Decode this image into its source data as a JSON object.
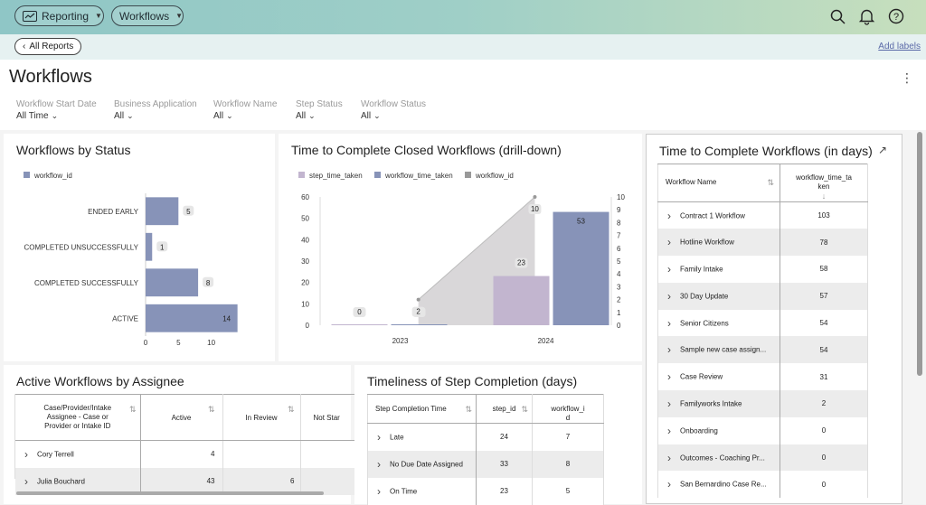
{
  "nav": {
    "reporting_label": "Reporting",
    "workflows_label": "Workflows",
    "back_label": "All Reports",
    "add_labels": "Add labels"
  },
  "page": {
    "title": "Workflows"
  },
  "filters": [
    {
      "label": "Workflow Start Date",
      "value": "All Time"
    },
    {
      "label": "Business Application",
      "value": "All"
    },
    {
      "label": "Workflow Name",
      "value": "All"
    },
    {
      "label": "Step Status",
      "value": "All"
    },
    {
      "label": "Workflow Status",
      "value": "All"
    }
  ],
  "status_chart": {
    "title": "Workflows by Status",
    "legend": "workflow_id"
  },
  "time_chart": {
    "title": "Time to Complete Closed Workflows (drill-down)",
    "legend": [
      "step_time_taken",
      "workflow_time_taken",
      "workflow_id"
    ]
  },
  "chart_data": [
    {
      "type": "bar",
      "orientation": "horizontal",
      "title": "Workflows by Status",
      "categories": [
        "ENDED EARLY",
        "COMPLETED UNSUCCESSFULLY",
        "COMPLETED SUCCESSFULLY",
        "ACTIVE"
      ],
      "series": [
        {
          "name": "workflow_id",
          "values": [
            5,
            1,
            8,
            14
          ]
        }
      ],
      "xticks": [
        0,
        5,
        10
      ],
      "xlim": [
        0,
        14.6
      ],
      "color": "#8793b8"
    },
    {
      "type": "bar",
      "title": "Time to Complete Closed Workflows (drill-down)",
      "categories": [
        "2023",
        "2024"
      ],
      "series": [
        {
          "name": "step_time_taken",
          "values": [
            0,
            23
          ],
          "axis": "left"
        },
        {
          "name": "workflow_time_taken",
          "values": [
            0,
            53
          ],
          "axis": "left"
        },
        {
          "name": "workflow_id",
          "values": [
            2,
            10
          ],
          "axis": "right",
          "type": "area"
        }
      ],
      "ylim_left": [
        0,
        60
      ],
      "yticks_left": [
        0,
        10,
        20,
        30,
        40,
        50,
        60
      ],
      "ylim_right": [
        0,
        10
      ],
      "yticks_right": [
        0,
        1,
        2,
        3,
        4,
        5,
        6,
        7,
        8,
        9,
        10
      ],
      "colors": {
        "step_time_taken": "#c2b5cf",
        "workflow_time_taken": "#8793b8",
        "workflow_id": "#999999"
      }
    }
  ],
  "time_table": {
    "title": "Time to Complete Workflows (in days)",
    "headers": [
      "Workflow Name",
      "workflow_time_ta\nken"
    ],
    "rows": [
      {
        "name": "Contract 1 Workflow",
        "value": "103"
      },
      {
        "name": "Hotline Workflow",
        "value": "78"
      },
      {
        "name": "Family Intake",
        "value": "58"
      },
      {
        "name": "30 Day Update",
        "value": "57"
      },
      {
        "name": "Senior Citizens",
        "value": "54"
      },
      {
        "name": "Sample new case assign...",
        "value": "54"
      },
      {
        "name": "Case Review",
        "value": "31"
      },
      {
        "name": "Familyworks Intake",
        "value": "2"
      },
      {
        "name": "Onboarding",
        "value": "0"
      },
      {
        "name": "Outcomes - Coaching Pr...",
        "value": "0"
      },
      {
        "name": "San Bernardino Case Re...",
        "value": "0"
      }
    ]
  },
  "assignee_table": {
    "title": "Active Workflows by Assignee",
    "headers": [
      "Case/Provider/Intake\nAssignee - Case or\nProvider or Intake ID",
      "Active",
      "In Review",
      "Not Star"
    ],
    "rows": [
      {
        "name": "Cory Terrell",
        "active": "4",
        "in_review": "",
        "not_started": ""
      },
      {
        "name": "Julia Bouchard",
        "active": "43",
        "in_review": "6",
        "not_started": ""
      }
    ]
  },
  "timeliness_table": {
    "title": "Timeliness of Step Completion (days)",
    "headers": [
      "Step Completion Time",
      "step_id",
      "workflow_i\nd"
    ],
    "rows": [
      {
        "name": "Late",
        "step_id": "24",
        "workflow_id": "7"
      },
      {
        "name": "No Due Date Assigned",
        "step_id": "33",
        "workflow_id": "8"
      },
      {
        "name": "On Time",
        "step_id": "23",
        "workflow_id": "5"
      }
    ]
  }
}
